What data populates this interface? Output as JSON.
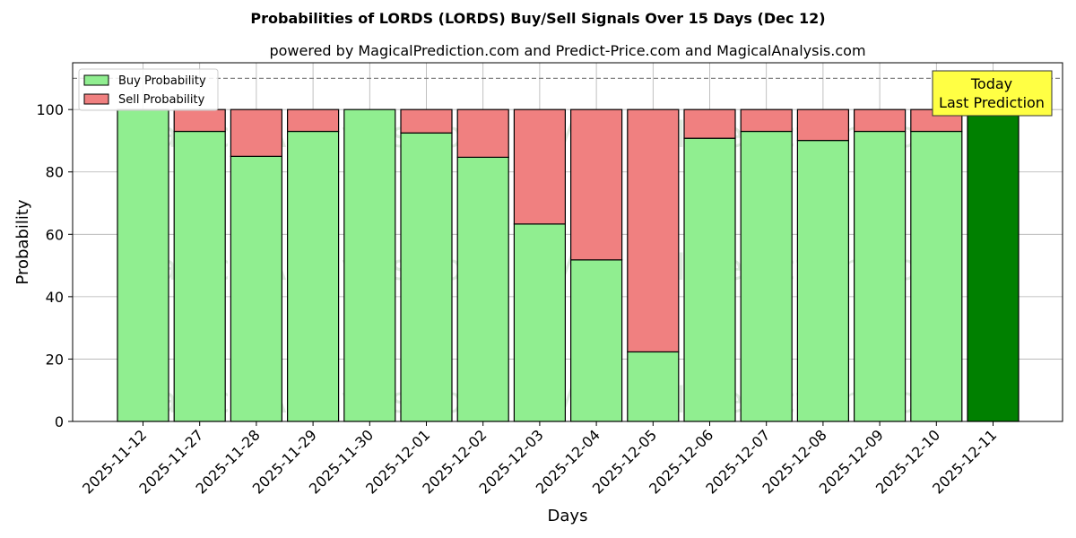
{
  "chart_data": {
    "type": "bar",
    "stacked": true,
    "title": "Probabilities of LORDS (LORDS) Buy/Sell Signals Over 15 Days (Dec 12)",
    "subtitle": "powered by MagicalPrediction.com and Predict-Price.com and MagicalAnalysis.com",
    "xlabel": "Days",
    "ylabel": "Probability",
    "ylim": [
      0,
      115
    ],
    "yticks": [
      0,
      20,
      40,
      60,
      80,
      100
    ],
    "grid": true,
    "legend_position": "top-left",
    "categories": [
      "2025-11-12",
      "2025-11-27",
      "2025-11-28",
      "2025-11-29",
      "2025-11-30",
      "2025-12-01",
      "2025-12-02",
      "2025-12-03",
      "2025-12-04",
      "2025-12-05",
      "2025-12-06",
      "2025-12-07",
      "2025-12-08",
      "2025-12-09",
      "2025-12-10",
      "2025-12-11"
    ],
    "series": [
      {
        "name": "Buy Probability",
        "color": "#90ee90",
        "values": [
          100,
          93,
          85,
          93,
          100,
          92.5,
          84.7,
          63.3,
          51.8,
          22.3,
          90.8,
          93,
          90.1,
          93,
          93,
          100
        ]
      },
      {
        "name": "Sell Probability",
        "color": "#f08080",
        "values": [
          0,
          7,
          15,
          7,
          0,
          7.5,
          15.3,
          36.7,
          48.2,
          77.7,
          9.2,
          7,
          9.9,
          7,
          7,
          0
        ]
      }
    ],
    "highlight": {
      "index": 15,
      "color": "#008000"
    },
    "reference_line": {
      "value": 110,
      "style": "dashed",
      "color": "#808080"
    },
    "annotation": {
      "lines": [
        "Today",
        "Last Prediction"
      ],
      "background": "#ffff44"
    },
    "watermarks": [
      "MagicalAnalysis.com",
      "MagicalPrediction.com"
    ]
  }
}
